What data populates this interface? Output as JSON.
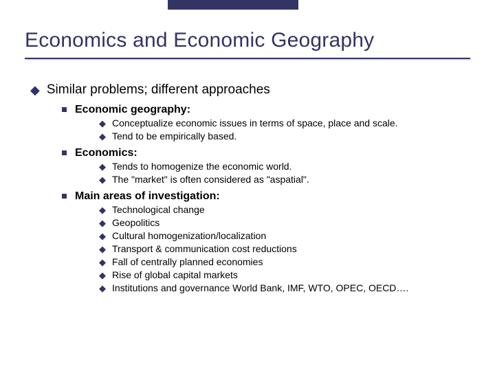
{
  "colors": {
    "accent": "#333366",
    "text": "#000000",
    "background": "#ffffff"
  },
  "typography": {
    "title_fontsize": 30,
    "level1_fontsize": 19,
    "level2_fontsize": 16,
    "level3_fontsize": 14,
    "font_family": "Arial"
  },
  "title": "Economics and Economic Geography",
  "level1": {
    "text": "Similar problems; different approaches"
  },
  "sections": [
    {
      "heading": "Economic geography:",
      "items": [
        "Conceptualize economic issues in terms of space, place and scale.",
        "Tend to be empirically based."
      ]
    },
    {
      "heading": "Economics:",
      "items": [
        "Tends to homogenize the economic world.",
        "The \"market\" is often considered as \"aspatial\"."
      ]
    },
    {
      "heading": "Main areas of investigation:",
      "items": [
        "Technological change",
        "Geopolitics",
        "Cultural homogenization/localization",
        "Transport & communication cost reductions",
        "Fall of centrally planned economies",
        "Rise of global capital markets",
        "Institutions and governance World Bank, IMF, WTO, OPEC, OECD…."
      ]
    }
  ]
}
